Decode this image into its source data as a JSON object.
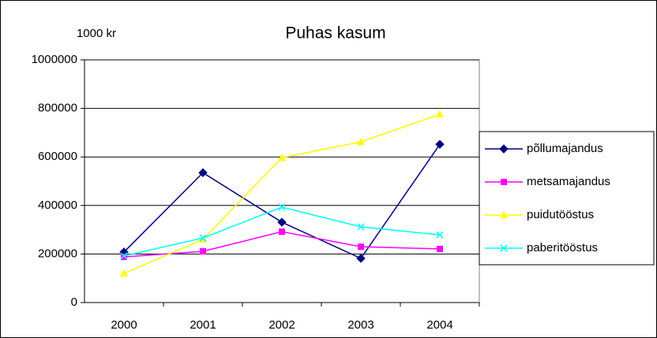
{
  "chart_data": {
    "type": "line",
    "title": "Puhas kasum",
    "ylabel": "1000 kr",
    "categories": [
      "2000",
      "2001",
      "2002",
      "2003",
      "2004"
    ],
    "series": [
      {
        "name": "põllumajandus",
        "color": "#000080",
        "marker": "diamond",
        "values": [
          208000,
          535000,
          331000,
          182000,
          652000
        ]
      },
      {
        "name": "metsamajandus",
        "color": "#ff00ff",
        "marker": "square",
        "values": [
          188000,
          211000,
          292000,
          230000,
          221000
        ]
      },
      {
        "name": "puidutööstus",
        "color": "#ffff00",
        "marker": "triangle",
        "values": [
          120000,
          260000,
          597000,
          662000,
          776000
        ]
      },
      {
        "name": "paberitööstus",
        "color": "#00ffff",
        "marker": "x",
        "values": [
          192000,
          266000,
          393000,
          312000,
          279000
        ]
      }
    ],
    "ylim": [
      0,
      1000000
    ],
    "yticks": [
      0,
      200000,
      400000,
      600000,
      800000,
      1000000
    ],
    "grid": true,
    "legend": "right"
  }
}
